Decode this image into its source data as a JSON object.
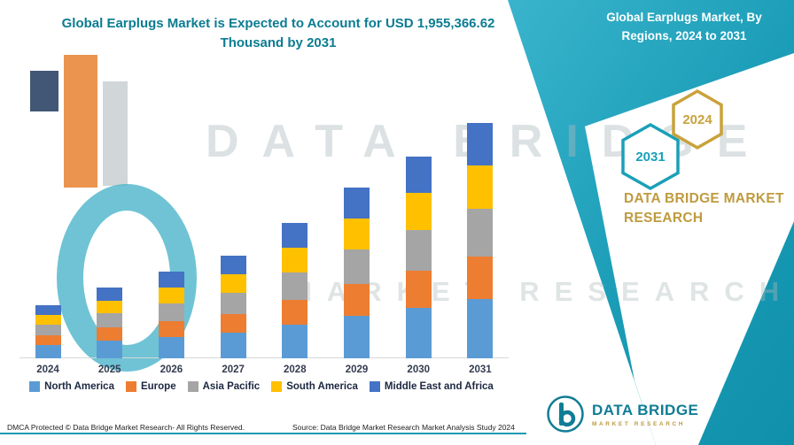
{
  "header": {
    "title": "Global Earplugs Market is Expected to Account for USD 1,955,366.62 Thousand by 2031"
  },
  "right_panel": {
    "banner_title": "Global Earplugs Market, By Regions, 2024 to 2031",
    "hexagons": [
      {
        "label": "2031",
        "color": "#1aa0b8"
      },
      {
        "label": "2024",
        "color": "#c9a23b"
      }
    ],
    "brand_text": "DATA BRIDGE MARKET RESEARCH"
  },
  "watermark": {
    "line1": "DATA BRIDGE",
    "line2": "MARKET RESEARCH",
    "logo_icon": "data-bridge-b-watermark"
  },
  "footer": {
    "dmca": "DMCA Protected © Data Bridge Market Research- All Rights Reserved.",
    "source": "Source: Data Bridge Market Research Market Analysis Study 2024",
    "logo_icon": "data-bridge-b-icon",
    "logo_name": "DATA BRIDGE",
    "logo_sub": "MARKET RESEARCH"
  },
  "colors": {
    "teal_accent": "#1a9cb6",
    "gold_accent": "#bf9b3f",
    "title_teal": "#0b7c92"
  },
  "chart_data": {
    "type": "bar",
    "stacked": true,
    "values_estimated": true,
    "value_unit": "USD Thousand",
    "title": "Global Earplugs Market is Expected to Account for USD 1,955,366.62 Thousand by 2031",
    "xlabel": "",
    "ylabel": "",
    "y_axis_visible": false,
    "grid": false,
    "legend_position": "bottom",
    "ylim": [
      0,
      2000000
    ],
    "total_2031": 1955366.62,
    "categories": [
      "2024",
      "2025",
      "2026",
      "2027",
      "2028",
      "2029",
      "2030",
      "2031"
    ],
    "series": [
      {
        "name": "North America",
        "color": "#5b9bd5",
        "values": [
          110000,
          147000,
          180000,
          213000,
          281000,
          355000,
          419000,
          489000
        ]
      },
      {
        "name": "Europe",
        "color": "#ed7d31",
        "values": [
          81000,
          108000,
          132000,
          157000,
          207000,
          261000,
          308000,
          360000
        ]
      },
      {
        "name": "Asia Pacific",
        "color": "#a5a5a5",
        "values": [
          89000,
          119000,
          146000,
          173000,
          228000,
          288000,
          340000,
          397000
        ]
      },
      {
        "name": "South America",
        "color": "#ffc000",
        "values": [
          81000,
          106000,
          130000,
          155000,
          205000,
          258000,
          305000,
          356000
        ]
      },
      {
        "name": "Middle East and Africa",
        "color": "#4472c4",
        "values": [
          80000,
          108000,
          132000,
          155000,
          204000,
          257000,
          304000,
          353366.62
        ]
      }
    ],
    "totals": [
      441000,
      588000,
      720000,
      853000,
      1125000,
      1419000,
      1676000,
      1955366.62
    ]
  }
}
